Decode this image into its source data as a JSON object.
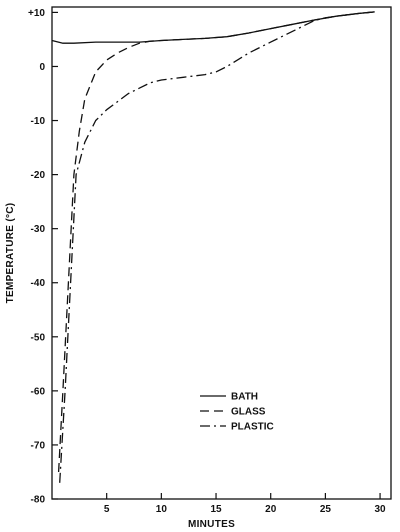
{
  "chart_data": {
    "type": "line",
    "xlabel": "MINUTES",
    "ylabel": "TEMPERATURE (°C)",
    "xlim": [
      0,
      31
    ],
    "ylim": [
      -80,
      11
    ],
    "x_ticks": [
      5,
      10,
      15,
      20,
      25,
      30
    ],
    "y_ticks": [
      {
        "value": 10,
        "label": "+10"
      },
      {
        "value": 0,
        "label": "0"
      },
      {
        "value": -10,
        "label": "-10"
      },
      {
        "value": -20,
        "label": "-20"
      },
      {
        "value": -30,
        "label": "-30"
      },
      {
        "value": -40,
        "label": "-40"
      },
      {
        "value": -50,
        "label": "-50"
      },
      {
        "value": -60,
        "label": "-60"
      },
      {
        "value": -70,
        "label": "-70"
      },
      {
        "value": -80,
        "label": "-80"
      }
    ],
    "grid": false,
    "legend_position": "lower-middle",
    "series": [
      {
        "name": "BATH",
        "style": "solid",
        "x": [
          0,
          1,
          2,
          4,
          6,
          8,
          10,
          12,
          14,
          16,
          18,
          20,
          22,
          24,
          26,
          28,
          29.5
        ],
        "y": [
          4.8,
          4.3,
          4.3,
          4.5,
          4.5,
          4.5,
          4.8,
          5.0,
          5.2,
          5.5,
          6.2,
          7.0,
          7.8,
          8.6,
          9.3,
          9.8,
          10.1
        ]
      },
      {
        "name": "GLASS",
        "style": "dashed",
        "x": [
          0.6,
          1,
          1.5,
          2,
          2.5,
          3,
          4,
          5,
          6,
          7,
          8,
          9,
          10,
          12,
          14,
          16,
          18,
          20,
          22,
          24,
          26,
          28,
          29.5
        ],
        "y": [
          -75,
          -60,
          -40,
          -20,
          -12,
          -6,
          -1,
          1.2,
          2.5,
          3.5,
          4.3,
          4.7,
          4.8,
          5.0,
          5.2,
          5.5,
          6.2,
          7.0,
          7.8,
          8.6,
          9.3,
          9.8,
          10.1
        ]
      },
      {
        "name": "PLASTIC",
        "style": "dashdot",
        "x": [
          0.7,
          1.2,
          1.7,
          2.2,
          3,
          4,
          5,
          6,
          7,
          8,
          9,
          10,
          12,
          14,
          15,
          16,
          18,
          20,
          22,
          24,
          25,
          26,
          28,
          29.5
        ],
        "y": [
          -77,
          -60,
          -40,
          -20,
          -14,
          -10,
          -8,
          -6.5,
          -5,
          -4,
          -3,
          -2.5,
          -2,
          -1.5,
          -1,
          0,
          2.5,
          4.5,
          6.5,
          8.5,
          9.0,
          9.3,
          9.8,
          10.1
        ]
      }
    ]
  }
}
